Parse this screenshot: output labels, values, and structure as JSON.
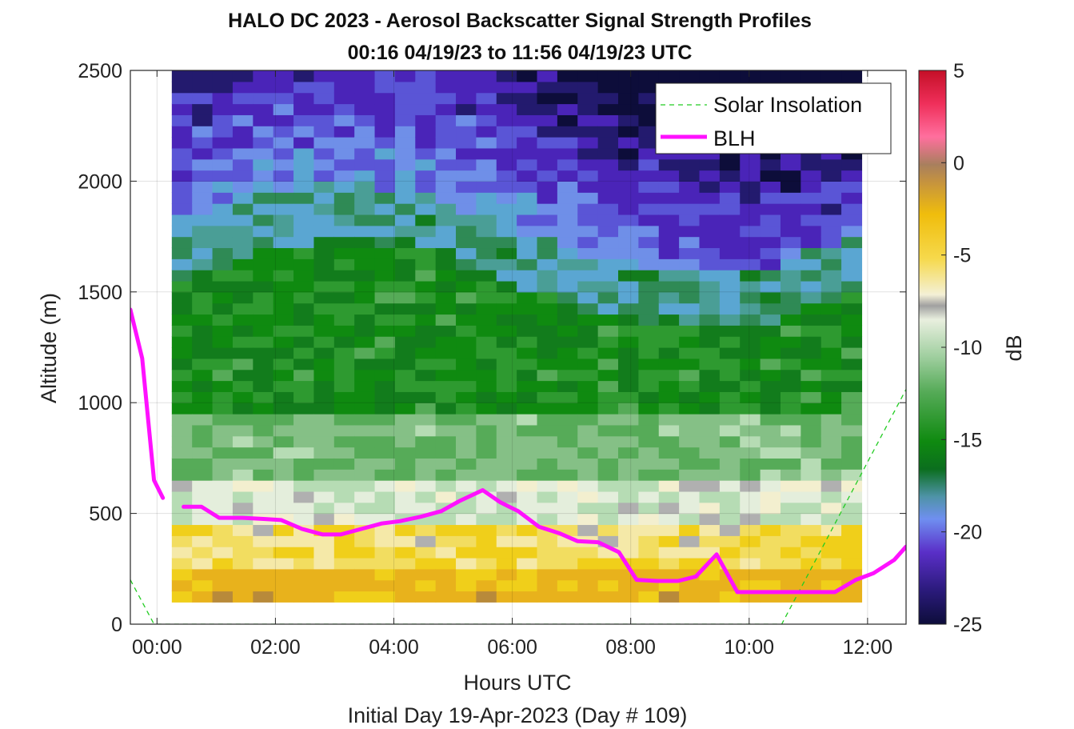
{
  "chart_data": {
    "type": "heatmap",
    "title": "HALO DC 2023 - Aerosol Backscatter Signal Strength Profiles",
    "subtitle": "00:16 04/19/23 to 11:56 04/19/23  UTC",
    "xlabel": "Hours UTC",
    "xlabel2": "Initial Day 19-Apr-2023 (Day # 109)",
    "ylabel": "Altitude (m)",
    "colorbar_label": "dB",
    "xlim": [
      -0.45,
      12.65
    ],
    "ylim": [
      0,
      2500
    ],
    "clim": [
      -25,
      5
    ],
    "xticks": [
      0,
      2,
      4,
      6,
      8,
      10,
      12
    ],
    "xtick_labels": [
      "00:00",
      "02:00",
      "04:00",
      "06:00",
      "08:00",
      "10:00",
      "12:00"
    ],
    "yticks": [
      0,
      500,
      1000,
      1500,
      2000,
      2500
    ],
    "ytick_labels": [
      "0",
      "500",
      "1000",
      "1500",
      "2000",
      "2500"
    ],
    "cticks": [
      5,
      0,
      -5,
      -10,
      -15,
      -20,
      -25
    ],
    "ctick_labels": [
      "5",
      "0",
      "-5",
      "-10",
      "-15",
      "-20",
      "-25"
    ],
    "grid": true,
    "legend_position": "top-right",
    "heatmap_extent": {
      "x": [
        0.25,
        11.9
      ],
      "y": [
        100,
        2500
      ]
    },
    "heatmap_colors": [
      "#0d0d3a",
      "#231a6e",
      "#4a24b8",
      "#5a55d6",
      "#6f8fe8",
      "#5aa6d2",
      "#4a9e96",
      "#2f8a55",
      "#127c1c",
      "#0f8a10",
      "#2e9a30",
      "#56ab58",
      "#85c086",
      "#b6dcb4",
      "#e4eedc",
      "#f3efcf",
      "#f5e9a8",
      "#f2dd60",
      "#f0cf1a",
      "#e8b21c",
      "#b88a3a"
    ],
    "invalid_color": "#b0b0b0",
    "series": [
      {
        "name": "Solar Insolation",
        "color": "#22cc22",
        "style": "dashed",
        "x": [
          -0.45,
          -0.05,
          10.55,
          12.65
        ],
        "y": [
          200,
          0,
          0,
          1060
        ]
      },
      {
        "name": "BLH",
        "color": "#ff11ff",
        "style": "solid",
        "segments": [
          {
            "x": [
              -0.45,
              -0.25,
              -0.05,
              0.1
            ],
            "y": [
              1420,
              1200,
              650,
              570
            ]
          },
          {
            "x": [
              0.45,
              0.75,
              1.05,
              1.45,
              1.8,
              2.1,
              2.45,
              2.8,
              3.1,
              3.45,
              3.8,
              4.1,
              4.45,
              4.8,
              5.1,
              5.5,
              5.8,
              6.1,
              6.45,
              6.8,
              7.1,
              7.45,
              7.8,
              8.1,
              8.45,
              8.8,
              9.1,
              9.45,
              9.8,
              10.1,
              10.45,
              10.8,
              11.1,
              11.45,
              11.8,
              12.1,
              12.45,
              12.65
            ],
            "y": [
              530,
              530,
              480,
              480,
              475,
              470,
              430,
              405,
              405,
              430,
              455,
              465,
              485,
              510,
              555,
              605,
              550,
              510,
              440,
              410,
              375,
              370,
              325,
              200,
              195,
              195,
              215,
              315,
              145,
              145,
              145,
              145,
              145,
              145,
              200,
              230,
              290,
              350
            ]
          }
        ]
      }
    ],
    "legend": [
      "Solar Insolation",
      "BLH"
    ]
  }
}
